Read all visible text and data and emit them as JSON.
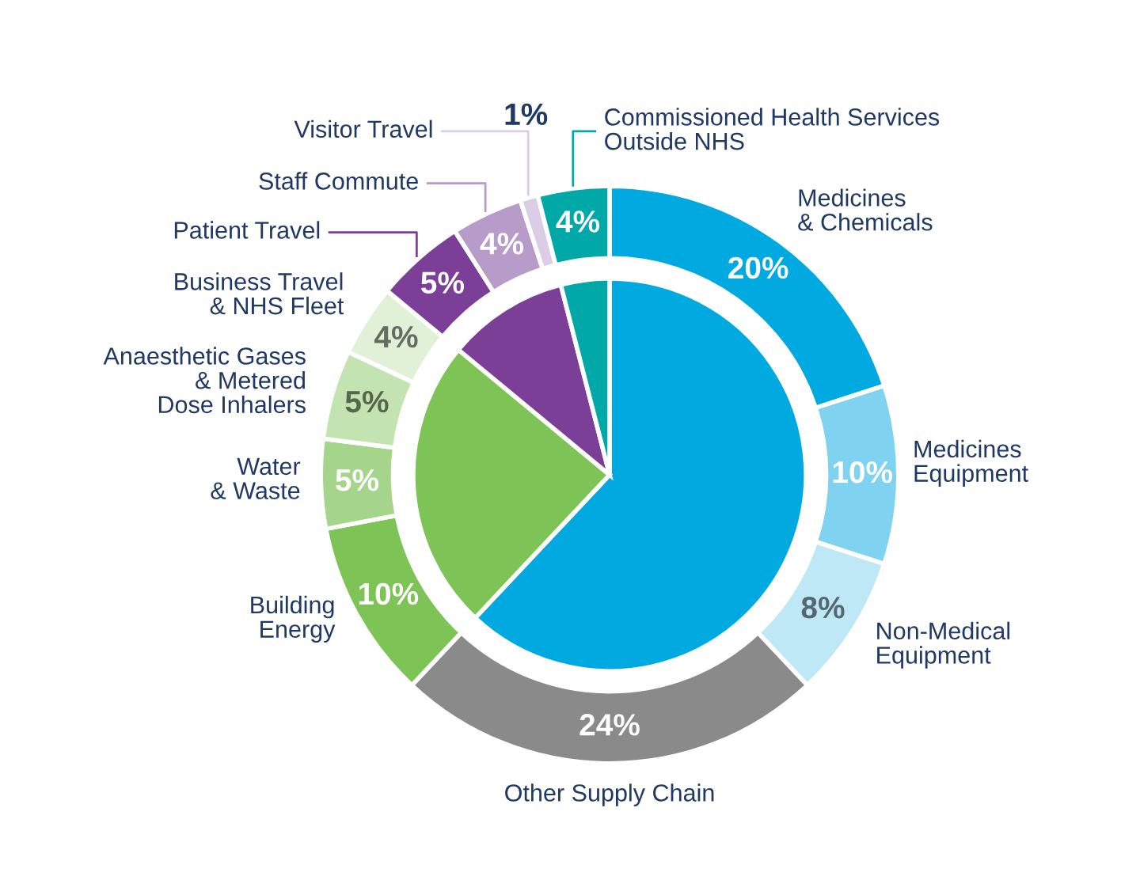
{
  "chart_data": {
    "type": "donut",
    "categories": [
      "Medicines\n& Chemicals",
      "Medicines\nEquipment",
      "Non-Medical\nEquipment",
      "Other Supply Chain",
      "Building\nEnergy",
      "Water\n& Waste",
      "Anaesthetic Gases\n& Metered\nDose Inhalers",
      "Business Travel\n& NHS Fleet",
      "Patient Travel",
      "Staff Commute",
      "Visitor Travel",
      "Commissioned Health Services\nOutside NHS"
    ],
    "series": [
      {
        "values": [
          20,
          10,
          8,
          24,
          10,
          5,
          5,
          4,
          5,
          4,
          1,
          4
        ],
        "value_labels": [
          "20%",
          "10%",
          "8%",
          "24%",
          "10%",
          "5%",
          "5%",
          "4%",
          "5%",
          "4%",
          "1%",
          "4%"
        ],
        "colors": [
          "#00a9e0",
          "#7fd3f0",
          "#bfe8f6",
          "#8a8a8a",
          "#7dc355",
          "#a5d58a",
          "#c3e3b0",
          "#e1f1d7",
          "#7b3f98",
          "#b79bc9",
          "#dccde6",
          "#00a8a8"
        ]
      },
      {
        "type": "pie",
        "values": [
          62,
          null,
          null,
          null,
          24,
          null,
          null,
          null,
          10,
          null,
          null,
          4
        ],
        "colors": [
          "#00a9e0",
          null,
          null,
          null,
          "#7dc355",
          null,
          null,
          null,
          "#7b3f98",
          null,
          null,
          "#00a8a8"
        ]
      }
    ]
  }
}
